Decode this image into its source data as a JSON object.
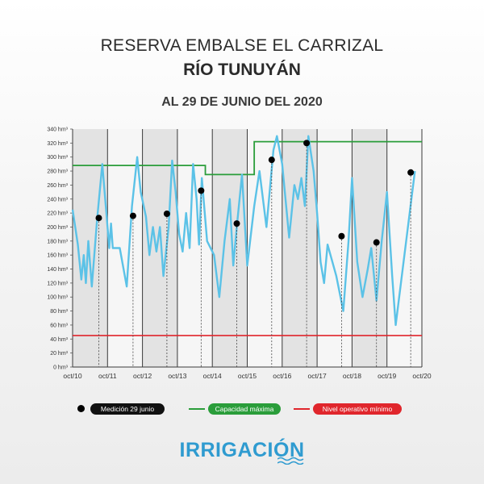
{
  "title": {
    "line1": "RESERVA EMBALSE EL CARRIZAL",
    "line2": "RÍO TUNUYÁN",
    "line3": "AL 29 DE JUNIO DEL 2020"
  },
  "legend": {
    "measurement": "Medición 29 junio",
    "capacity": "Capacidad máxima",
    "minimum": "Nivel operativo mínimo"
  },
  "brand": "IRRIGACIÓN",
  "colors": {
    "series": "#5bc2e7",
    "capacity": "#2a9d3a",
    "minimum": "#e0262c",
    "band_dark": "#e3e3e3",
    "band_light": "#f6f6f6"
  },
  "chart_data": {
    "type": "line",
    "y_unit": "hm³",
    "ylim": [
      0,
      340
    ],
    "y_ticks": [
      0,
      20,
      40,
      60,
      80,
      100,
      120,
      140,
      160,
      180,
      200,
      220,
      240,
      260,
      280,
      300,
      320,
      340
    ],
    "x_ticks": [
      "oct/10",
      "oct/11",
      "oct/12",
      "oct/13",
      "oct/14",
      "oct/15",
      "oct/16",
      "oct/17",
      "oct/18",
      "oct/19",
      "oct/20"
    ],
    "series": [
      {
        "points": [
          [
            0.0,
            225
          ],
          [
            0.15,
            175
          ],
          [
            0.25,
            125
          ],
          [
            0.32,
            160
          ],
          [
            0.38,
            120
          ],
          [
            0.45,
            180
          ],
          [
            0.55,
            115
          ],
          [
            0.7,
            210
          ],
          [
            0.85,
            290
          ],
          [
            0.95,
            230
          ],
          [
            1.05,
            170
          ],
          [
            1.1,
            205
          ],
          [
            1.15,
            170
          ],
          [
            1.35,
            170
          ],
          [
            1.55,
            115
          ],
          [
            1.7,
            230
          ],
          [
            1.85,
            300
          ],
          [
            1.95,
            250
          ],
          [
            2.1,
            215
          ],
          [
            2.2,
            160
          ],
          [
            2.3,
            200
          ],
          [
            2.4,
            165
          ],
          [
            2.5,
            200
          ],
          [
            2.6,
            130
          ],
          [
            2.75,
            200
          ],
          [
            2.85,
            295
          ],
          [
            2.95,
            250
          ],
          [
            3.05,
            190
          ],
          [
            3.15,
            165
          ],
          [
            3.25,
            220
          ],
          [
            3.35,
            170
          ],
          [
            3.45,
            290
          ],
          [
            3.55,
            240
          ],
          [
            3.62,
            175
          ],
          [
            3.7,
            270
          ],
          [
            3.85,
            180
          ],
          [
            4.05,
            160
          ],
          [
            4.2,
            100
          ],
          [
            4.35,
            180
          ],
          [
            4.5,
            240
          ],
          [
            4.6,
            145
          ],
          [
            4.7,
            200
          ],
          [
            4.85,
            275
          ],
          [
            5.0,
            145
          ],
          [
            5.2,
            230
          ],
          [
            5.35,
            280
          ],
          [
            5.55,
            200
          ],
          [
            5.75,
            310
          ],
          [
            5.85,
            330
          ],
          [
            6.0,
            290
          ],
          [
            6.2,
            185
          ],
          [
            6.35,
            260
          ],
          [
            6.45,
            240
          ],
          [
            6.55,
            270
          ],
          [
            6.65,
            230
          ],
          [
            6.75,
            330
          ],
          [
            6.9,
            280
          ],
          [
            7.0,
            220
          ],
          [
            7.1,
            150
          ],
          [
            7.2,
            120
          ],
          [
            7.3,
            175
          ],
          [
            7.55,
            130
          ],
          [
            7.75,
            80
          ],
          [
            7.9,
            180
          ],
          [
            8.0,
            270
          ],
          [
            8.15,
            150
          ],
          [
            8.3,
            100
          ],
          [
            8.45,
            140
          ],
          [
            8.55,
            170
          ],
          [
            8.7,
            95
          ],
          [
            8.85,
            180
          ],
          [
            9.0,
            250
          ],
          [
            9.15,
            130
          ],
          [
            9.25,
            60
          ],
          [
            9.45,
            140
          ],
          [
            9.65,
            220
          ],
          [
            9.8,
            280
          ]
        ]
      }
    ],
    "measurements": [
      [
        0.75,
        213
      ],
      [
        1.73,
        216
      ],
      [
        2.7,
        219
      ],
      [
        3.68,
        252
      ],
      [
        4.7,
        205
      ],
      [
        5.7,
        296
      ],
      [
        6.7,
        320
      ],
      [
        7.7,
        187
      ],
      [
        8.7,
        178
      ],
      [
        9.68,
        278
      ]
    ],
    "capacity_line": [
      [
        0,
        288
      ],
      [
        3.8,
        288
      ],
      [
        3.8,
        275
      ],
      [
        5.2,
        275
      ],
      [
        5.2,
        322
      ],
      [
        10,
        322
      ]
    ],
    "minimum_line": [
      [
        0,
        45
      ],
      [
        10,
        45
      ]
    ]
  }
}
